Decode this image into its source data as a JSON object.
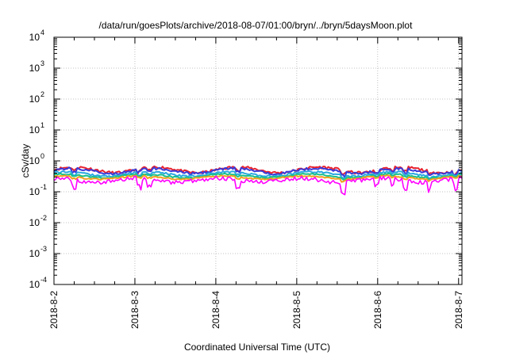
{
  "chart_data": {
    "type": "line",
    "title": "/data/run/goesPlots/archive/2018-08-07/01:00/bryn/../bryn/5daysMoon.plot",
    "xlabel": "Coordinated Universal Time (UTC)",
    "ylabel": "cSv/day",
    "yscale": "log",
    "ylim": [
      0.0001,
      10000
    ],
    "xlim": [
      "2018-08-02 00:00",
      "2018-08-07 01:00"
    ],
    "grid": true,
    "y_ticks": [
      {
        "base": "10",
        "exp": "-4"
      },
      {
        "base": "10",
        "exp": "-3"
      },
      {
        "base": "10",
        "exp": "-2"
      },
      {
        "base": "10",
        "exp": "-1"
      },
      {
        "base": "10",
        "exp": "0"
      },
      {
        "base": "10",
        "exp": "1"
      },
      {
        "base": "10",
        "exp": "2"
      },
      {
        "base": "10",
        "exp": "3"
      },
      {
        "base": "10",
        "exp": "4"
      }
    ],
    "x_ticks": [
      "2018-8-2",
      "2018-8-3",
      "2018-8-4",
      "2018-8-5",
      "2018-8-6",
      "2018-8-7"
    ],
    "series": [
      {
        "color": "#e8232f",
        "base": 0.52,
        "amp": 0.12,
        "noise": 0.1,
        "dip": 0.25,
        "phase": 0.0
      },
      {
        "color": "#3a3ad8",
        "base": 0.48,
        "amp": 0.1,
        "noise": 0.09,
        "dip": 0.25,
        "phase": 0.3
      },
      {
        "color": "#2aa9e0",
        "base": 0.38,
        "amp": 0.07,
        "noise": 0.07,
        "dip": 0.2,
        "phase": 0.6
      },
      {
        "color": "#18c08a",
        "base": 0.33,
        "amp": 0.05,
        "noise": 0.05,
        "dip": 0.15,
        "phase": 0.9
      },
      {
        "color": "#f0a020",
        "base": 0.29,
        "amp": 0.04,
        "noise": 0.05,
        "dip": 0.15,
        "phase": 1.2
      },
      {
        "color": "#ff00ff",
        "base": 0.24,
        "amp": 0.04,
        "noise": 0.16,
        "dip": 0.55,
        "phase": 1.5
      }
    ]
  }
}
